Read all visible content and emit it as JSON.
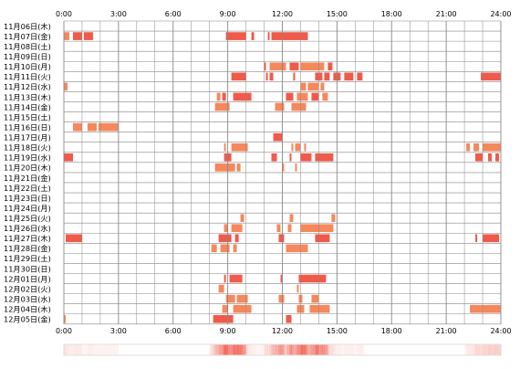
{
  "chart_data": {
    "type": "heatmap",
    "title": "",
    "xlabel": "",
    "ylabel": "",
    "x_range_hours": [
      0,
      24
    ],
    "x_tick_labels": [
      "0:00",
      "3:00",
      "6:00",
      "9:00",
      "12:00",
      "15:00",
      "18:00",
      "21:00",
      "24:00"
    ],
    "grid": true,
    "colors": {
      "background": "#ffffff",
      "grid": "#888888",
      "bar_red": "#f05a4a",
      "bar_orange": "#f5885c",
      "label": "#000000"
    },
    "days": [
      {
        "label": "11月06日(木)",
        "bars": []
      },
      {
        "label": "11月07日(金)",
        "bars": [
          [
            0.0,
            0.3,
            "o"
          ],
          [
            0.5,
            1.0,
            "r"
          ],
          [
            1.1,
            1.6,
            "r"
          ],
          [
            8.9,
            10.0,
            "r"
          ],
          [
            10.3,
            10.45,
            "r"
          ],
          [
            11.2,
            11.3,
            "r"
          ],
          [
            11.4,
            13.4,
            "r"
          ]
        ]
      },
      {
        "label": "11月08日(土)",
        "bars": []
      },
      {
        "label": "11月09日(日)",
        "bars": []
      },
      {
        "label": "11月10日(月)",
        "bars": [
          [
            11.0,
            11.1,
            "r"
          ],
          [
            11.3,
            12.2,
            "o"
          ],
          [
            12.4,
            12.9,
            "r"
          ],
          [
            13.0,
            14.3,
            "o"
          ],
          [
            14.5,
            14.75,
            "r"
          ]
        ]
      },
      {
        "label": "11月11日(火)",
        "bars": [
          [
            9.2,
            10.0,
            "r"
          ],
          [
            11.1,
            11.2,
            "r"
          ],
          [
            11.3,
            11.5,
            "r"
          ],
          [
            12.6,
            12.7,
            "r"
          ],
          [
            13.8,
            14.2,
            "r"
          ],
          [
            14.3,
            14.6,
            "r"
          ],
          [
            14.8,
            15.2,
            "r"
          ],
          [
            15.4,
            15.9,
            "r"
          ],
          [
            16.1,
            16.4,
            "r"
          ],
          [
            22.9,
            24.0,
            "r"
          ]
        ]
      },
      {
        "label": "11月12日(水)",
        "bars": [
          [
            0.0,
            0.2,
            "o"
          ],
          [
            13.0,
            13.3,
            "o"
          ],
          [
            13.4,
            14.0,
            "o"
          ],
          [
            14.1,
            14.3,
            "o"
          ]
        ]
      },
      {
        "label": "11月13日(木)",
        "bars": [
          [
            8.4,
            8.6,
            "o"
          ],
          [
            8.7,
            8.9,
            "r"
          ],
          [
            9.3,
            10.3,
            "r"
          ],
          [
            12.2,
            12.6,
            "r"
          ],
          [
            12.8,
            13.4,
            "o"
          ],
          [
            13.6,
            14.0,
            "r"
          ],
          [
            14.2,
            14.5,
            "o"
          ]
        ]
      },
      {
        "label": "11月14日(金)",
        "bars": [
          [
            8.3,
            9.1,
            "o"
          ],
          [
            11.6,
            12.1,
            "o"
          ],
          [
            12.5,
            13.3,
            "o"
          ]
        ]
      },
      {
        "label": "11月15日(土)",
        "bars": []
      },
      {
        "label": "11月16日(日)",
        "bars": [
          [
            0.5,
            1.0,
            "o"
          ],
          [
            1.3,
            1.8,
            "o"
          ],
          [
            1.9,
            3.0,
            "o"
          ]
        ]
      },
      {
        "label": "11月17日(月)",
        "bars": [
          [
            11.5,
            12.0,
            "r"
          ]
        ]
      },
      {
        "label": "11月18日(火)",
        "bars": [
          [
            8.8,
            8.9,
            "o"
          ],
          [
            9.2,
            10.1,
            "o"
          ],
          [
            12.5,
            12.6,
            "o"
          ],
          [
            12.7,
            13.0,
            "o"
          ],
          [
            13.2,
            13.3,
            "o"
          ],
          [
            22.1,
            22.3,
            "o"
          ],
          [
            22.5,
            22.8,
            "o"
          ],
          [
            23.0,
            24.0,
            "o"
          ]
        ]
      },
      {
        "label": "11月19日(水)",
        "bars": [
          [
            0.0,
            0.5,
            "r"
          ],
          [
            8.8,
            9.2,
            "r"
          ],
          [
            11.4,
            11.7,
            "r"
          ],
          [
            12.4,
            12.5,
            "r"
          ],
          [
            13.0,
            13.6,
            "r"
          ],
          [
            13.8,
            14.8,
            "r"
          ],
          [
            22.6,
            23.0,
            "r"
          ],
          [
            23.3,
            23.5,
            "r"
          ],
          [
            23.7,
            23.9,
            "r"
          ]
        ]
      },
      {
        "label": "11月20日(木)",
        "bars": [
          [
            8.3,
            9.4,
            "o"
          ],
          [
            9.5,
            9.7,
            "o"
          ],
          [
            12.0,
            12.1,
            "o"
          ],
          [
            12.7,
            12.8,
            "o"
          ]
        ]
      },
      {
        "label": "11月21日(金)",
        "bars": []
      },
      {
        "label": "11月22日(土)",
        "bars": []
      },
      {
        "label": "11月23日(日)",
        "bars": []
      },
      {
        "label": "11月24日(月)",
        "bars": []
      },
      {
        "label": "11月25日(火)",
        "bars": [
          [
            9.7,
            9.9,
            "o"
          ],
          [
            12.4,
            12.6,
            "o"
          ],
          [
            14.7,
            14.9,
            "o"
          ]
        ]
      },
      {
        "label": "11月26日(水)",
        "bars": [
          [
            8.8,
            9.0,
            "o"
          ],
          [
            9.2,
            9.8,
            "o"
          ],
          [
            11.7,
            11.9,
            "o"
          ],
          [
            12.3,
            12.5,
            "o"
          ],
          [
            13.0,
            14.8,
            "o"
          ]
        ]
      },
      {
        "label": "11月27日(木)",
        "bars": [
          [
            0.1,
            1.0,
            "r"
          ],
          [
            8.5,
            9.2,
            "r"
          ],
          [
            9.4,
            9.6,
            "r"
          ],
          [
            11.8,
            12.1,
            "r"
          ],
          [
            13.8,
            14.6,
            "r"
          ],
          [
            22.6,
            22.7,
            "r"
          ],
          [
            23.0,
            23.9,
            "r"
          ]
        ]
      },
      {
        "label": "11月28日(金)",
        "bars": [
          [
            8.1,
            8.4,
            "o"
          ],
          [
            8.6,
            9.1,
            "o"
          ],
          [
            9.3,
            9.5,
            "o"
          ],
          [
            12.2,
            13.4,
            "o"
          ]
        ]
      },
      {
        "label": "11月29日(土)",
        "bars": []
      },
      {
        "label": "11月30日(日)",
        "bars": []
      },
      {
        "label": "12月01日(月)",
        "bars": [
          [
            8.8,
            8.9,
            "r"
          ],
          [
            9.1,
            9.8,
            "r"
          ],
          [
            11.9,
            12.0,
            "r"
          ],
          [
            12.9,
            14.4,
            "r"
          ]
        ]
      },
      {
        "label": "12月02日(火)",
        "bars": [
          [
            8.5,
            8.8,
            "o"
          ],
          [
            12.8,
            12.9,
            "o"
          ]
        ]
      },
      {
        "label": "12月03日(水)",
        "bars": [
          [
            8.9,
            9.4,
            "o"
          ],
          [
            9.5,
            10.1,
            "o"
          ],
          [
            11.8,
            12.1,
            "o"
          ],
          [
            12.9,
            13.1,
            "o"
          ],
          [
            13.6,
            14.0,
            "o"
          ]
        ]
      },
      {
        "label": "12月04日(木)",
        "bars": [
          [
            8.7,
            9.0,
            "o"
          ],
          [
            9.3,
            10.3,
            "o"
          ],
          [
            12.8,
            13.2,
            "o"
          ],
          [
            13.5,
            14.6,
            "o"
          ],
          [
            22.3,
            24.0,
            "o"
          ]
        ]
      },
      {
        "label": "12月05日(金)",
        "bars": [
          [
            0.0,
            0.1,
            "o"
          ],
          [
            8.2,
            9.3,
            "r"
          ],
          [
            12.2,
            12.5,
            "r"
          ]
        ]
      }
    ],
    "activity_strip": [
      {
        "segment": [
          0.0,
          3.0
        ],
        "intensity": 0.3
      },
      {
        "segment": [
          3.0,
          8.0
        ],
        "intensity": 0.05
      },
      {
        "segment": [
          8.0,
          10.0
        ],
        "intensity": 0.9
      },
      {
        "segment": [
          10.0,
          11.0
        ],
        "intensity": 0.4
      },
      {
        "segment": [
          11.0,
          14.5
        ],
        "intensity": 0.85
      },
      {
        "segment": [
          14.5,
          16.5
        ],
        "intensity": 0.4
      },
      {
        "segment": [
          16.5,
          22.0
        ],
        "intensity": 0.05
      },
      {
        "segment": [
          22.0,
          24.0
        ],
        "intensity": 0.5
      }
    ]
  }
}
